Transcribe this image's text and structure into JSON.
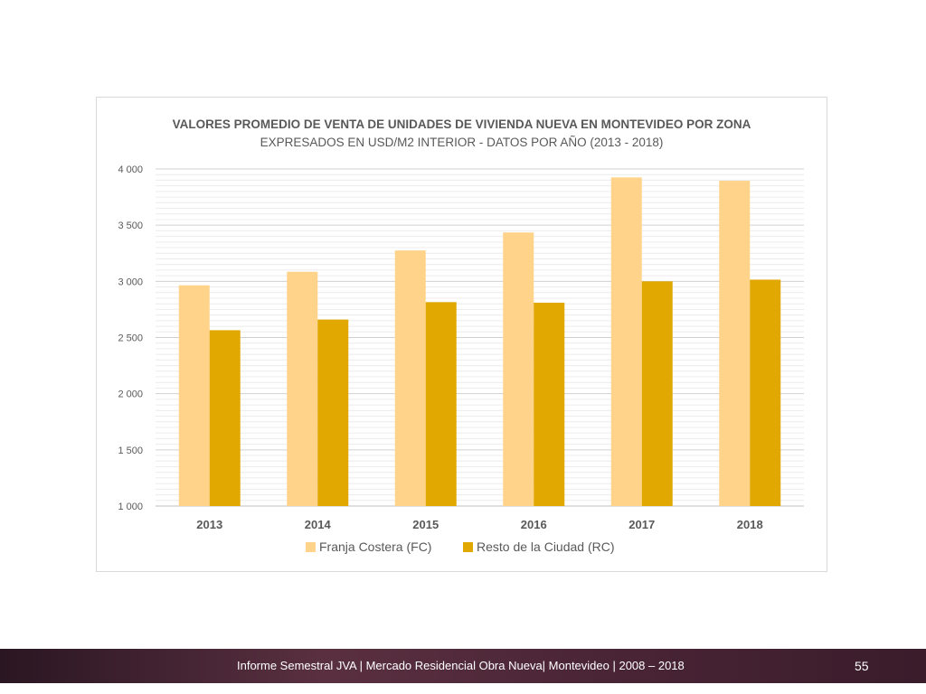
{
  "chart_data": {
    "type": "bar",
    "title": "VALORES PROMEDIO DE VENTA DE UNIDADES DE VIVIENDA NUEVA EN MONTEVIDEO POR ZONA",
    "subtitle": "EXPRESADOS EN USD/M2 INTERIOR - DATOS POR AÑO (2013 - 2018)",
    "categories": [
      "2013",
      "2014",
      "2015",
      "2016",
      "2017",
      "2018"
    ],
    "series": [
      {
        "name": "Franja Costera (FC)",
        "color": "#ffd38a",
        "values": [
          2965,
          3085,
          3275,
          3435,
          3925,
          3895
        ]
      },
      {
        "name": "Resto de la Ciudad (RC)",
        "color": "#e0a800",
        "values": [
          2565,
          2660,
          2815,
          2810,
          3000,
          3015
        ]
      }
    ],
    "ylim": [
      1000,
      4000
    ],
    "yticks": [
      1000,
      1500,
      2000,
      2500,
      3000,
      3500,
      4000
    ],
    "ytick_labels": [
      "1 000",
      "1 500",
      "2 000",
      "2 500",
      "3 000",
      "3 500",
      "4 000"
    ],
    "grid": true,
    "legend_position": "bottom"
  },
  "footer": {
    "text": "Informe Semestral JVA | Mercado Residencial Obra Nueva| Montevideo | 2008 – 2018",
    "page": "55"
  }
}
